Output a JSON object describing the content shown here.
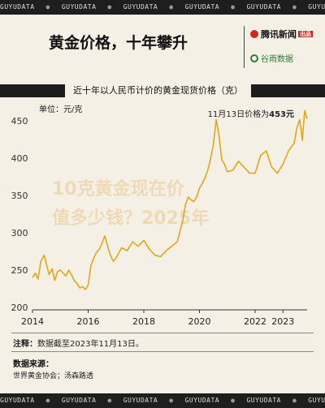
{
  "band_text": "GUYUDATA",
  "header": {
    "title": "黄金价格，十年攀升",
    "brand_primary": "腾讯新闻",
    "brand_primary_badge": "出品",
    "brand_secondary": "谷雨数据"
  },
  "subtitle": "近十年以人民币计价的黄金现货价格（克）",
  "unit_label": "单位：元/克",
  "annotation": {
    "prefix": "11月13日价格为",
    "value": "453元"
  },
  "note": {
    "label": "注释：",
    "text": "数据截至2023年11月13日。"
  },
  "source": {
    "title": "数据来源：",
    "text": "世界黄金协会；汤森路透"
  },
  "watermark_lines": [
    "10克黄金现在价",
    "值多少钱？2025年"
  ],
  "colors": {
    "line": "#e2a71a",
    "background": "#f5f0e6",
    "dark": "#1c1c1c"
  },
  "chart_data": {
    "type": "line",
    "x_ticks": [
      "2014",
      "2016",
      "2018",
      "2020",
      "2022",
      "2023"
    ],
    "x_tick_values": [
      2014,
      2016,
      2018,
      2020,
      2022,
      2023
    ],
    "y_ticks": [
      200,
      250,
      300,
      350,
      400,
      450
    ],
    "xlim": [
      2014,
      2023.87
    ],
    "ylim": [
      200,
      460
    ],
    "grid": false,
    "series": [
      {
        "values_x": [
          2014.0,
          2014.1,
          2014.2,
          2014.3,
          2014.42,
          2014.5,
          2014.6,
          2014.7,
          2014.8,
          2014.9,
          2015.0,
          2015.1,
          2015.2,
          2015.3,
          2015.4,
          2015.5,
          2015.6,
          2015.7,
          2015.8,
          2015.9,
          2016.0,
          2016.1,
          2016.2,
          2016.3,
          2016.4,
          2016.5,
          2016.6,
          2016.7,
          2016.8,
          2016.9,
          2017.0,
          2017.2,
          2017.4,
          2017.6,
          2017.8,
          2018.0,
          2018.2,
          2018.4,
          2018.6,
          2018.8,
          2019.0,
          2019.2,
          2019.4,
          2019.5,
          2019.6,
          2019.7,
          2019.8,
          2019.9,
          2020.0,
          2020.1,
          2020.2,
          2020.3,
          2020.4,
          2020.5,
          2020.6,
          2020.7,
          2020.8,
          2020.9,
          2021.0,
          2021.2,
          2021.4,
          2021.6,
          2021.8,
          2022.0,
          2022.2,
          2022.4,
          2022.6,
          2022.8,
          2023.0,
          2023.2,
          2023.4,
          2023.5,
          2023.6,
          2023.7,
          2023.78,
          2023.87
        ],
        "values_y": [
          240,
          246,
          238,
          262,
          270,
          258,
          244,
          252,
          236,
          248,
          250,
          246,
          242,
          250,
          244,
          236,
          232,
          226,
          228,
          224,
          230,
          256,
          266,
          274,
          278,
          286,
          296,
          282,
          270,
          262,
          266,
          280,
          276,
          288,
          282,
          290,
          278,
          270,
          268,
          276,
          282,
          288,
          316,
          338,
          348,
          344,
          342,
          348,
          360,
          366,
          374,
          384,
          400,
          418,
          452,
          432,
          398,
          392,
          382,
          384,
          396,
          388,
          380,
          380,
          404,
          410,
          388,
          380,
          392,
          410,
          420,
          440,
          452,
          424,
          464,
          453
        ]
      }
    ]
  }
}
